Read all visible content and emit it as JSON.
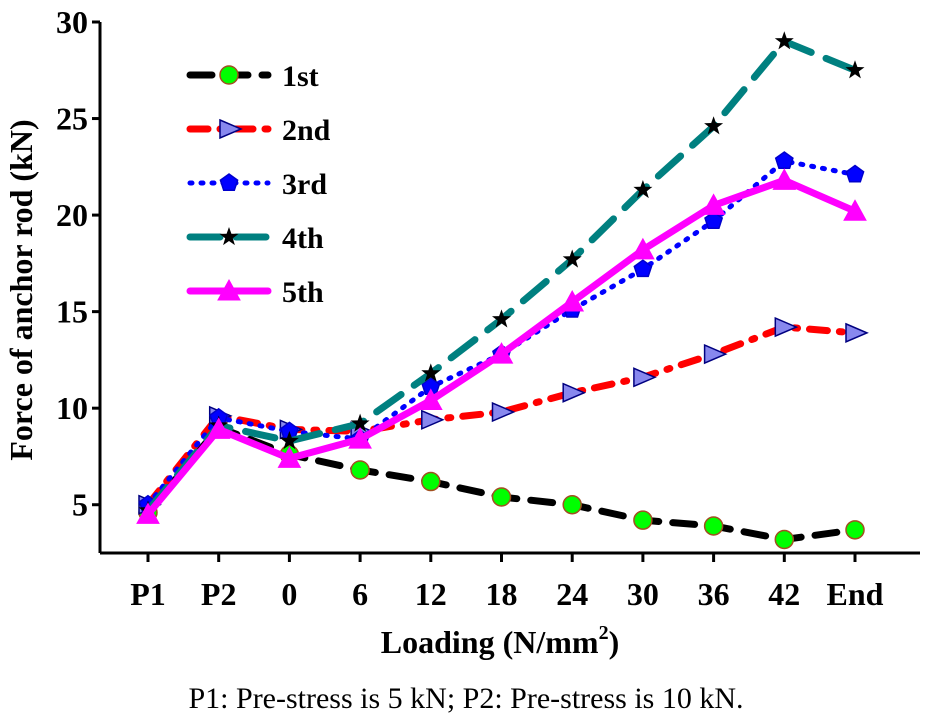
{
  "chart_data": {
    "type": "line",
    "title": "",
    "xlabel": "Loading (N/mm",
    "xlabel_sup": "2",
    "xlabel_end": ")",
    "ylabel": "Force of anchor rod (kN)",
    "footnote": "P1: Pre-stress is 5 kN; P2: Pre-stress is 10 kN.",
    "categories": [
      "P1",
      "P2",
      "0",
      "6",
      "12",
      "18",
      "24",
      "30",
      "36",
      "42",
      "End"
    ],
    "ylim": [
      2.5,
      30
    ],
    "yticks": [
      5,
      10,
      15,
      20,
      25,
      30
    ],
    "grid": false,
    "legend_position": "top-left",
    "series": [
      {
        "name": "1st",
        "color": "#000000",
        "dash": "22 14",
        "marker": "circle",
        "values": [
          4.6,
          9.0,
          7.6,
          6.8,
          6.2,
          5.4,
          5.0,
          4.2,
          3.9,
          3.2,
          3.7
        ]
      },
      {
        "name": "2nd",
        "color": "#ff0000",
        "dash": "18 12 3 12",
        "marker": "triangle-right",
        "values": [
          5.0,
          9.6,
          8.9,
          8.8,
          9.4,
          9.8,
          10.8,
          11.6,
          12.8,
          14.2,
          13.9
        ]
      },
      {
        "name": "3rd",
        "color": "#0000ff",
        "dash": "2 9",
        "marker": "pentagon",
        "values": [
          5.0,
          9.5,
          8.8,
          8.4,
          11.1,
          12.8,
          15.1,
          17.2,
          19.7,
          22.8,
          22.1
        ]
      },
      {
        "name": "4th",
        "color": "#008080",
        "dash": "30 16",
        "marker": "star",
        "values": [
          4.7,
          9.1,
          8.3,
          9.2,
          11.8,
          14.6,
          17.7,
          21.3,
          24.6,
          29.0,
          27.5
        ]
      },
      {
        "name": "5th",
        "color": "#ff00ff",
        "dash": "",
        "marker": "triangle-up",
        "values": [
          4.5,
          8.9,
          7.4,
          8.4,
          10.4,
          12.8,
          15.5,
          18.2,
          20.5,
          21.8,
          20.2
        ]
      }
    ]
  }
}
